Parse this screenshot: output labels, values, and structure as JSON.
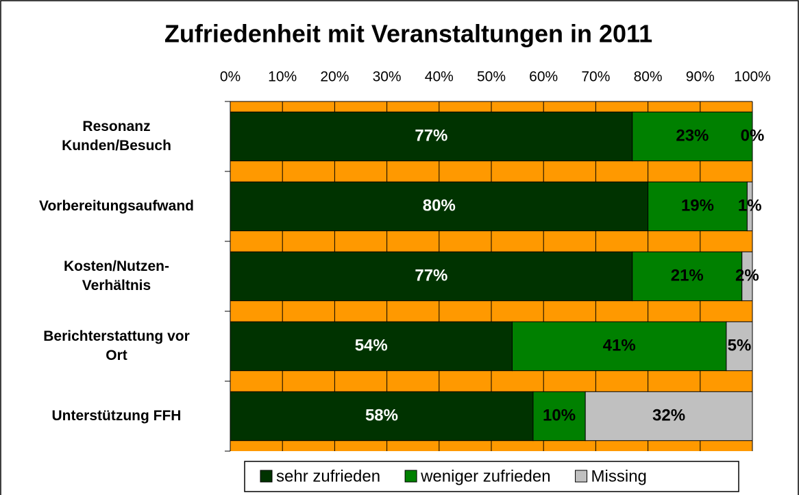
{
  "chart_data": {
    "type": "stacked_bar_horizontal",
    "title": "Zufriedenheit mit Veranstaltungen in 2011",
    "categories": [
      [
        "Resonanz",
        "Kunden/Besuch"
      ],
      [
        "Vorbereitungsaufwand"
      ],
      [
        "Kosten/Nutzen-",
        "Verhältnis"
      ],
      [
        "Berichterstattung vor",
        "Ort"
      ],
      [
        "Unterstützung FFH"
      ]
    ],
    "series": [
      {
        "name": "sehr zufrieden",
        "color": "#003300",
        "label_color": "#ffffff",
        "values": [
          77,
          80,
          77,
          54,
          58
        ],
        "value_labels": [
          "77%",
          "80%",
          "77%",
          "54%",
          "58%"
        ]
      },
      {
        "name": "weniger zufrieden",
        "color": "#008000",
        "label_color": "#000000",
        "values": [
          23,
          19,
          21,
          41,
          10
        ],
        "value_labels": [
          "23%",
          "19%",
          "21%",
          "41%",
          "10%"
        ]
      },
      {
        "name": "Missing",
        "color": "#c0c0c0",
        "label_color": "#000000",
        "values": [
          0,
          1,
          2,
          5,
          32
        ],
        "value_labels": [
          "0%",
          "1%",
          "2%",
          "5%",
          "32%"
        ]
      }
    ],
    "xlim": [
      0,
      100
    ],
    "xticks": [
      {
        "value": 0,
        "label": "0%"
      },
      {
        "value": 10,
        "label": "10%"
      },
      {
        "value": 20,
        "label": "20%"
      },
      {
        "value": 30,
        "label": "30%"
      },
      {
        "value": 40,
        "label": "40%"
      },
      {
        "value": 50,
        "label": "50%"
      },
      {
        "value": 60,
        "label": "60%"
      },
      {
        "value": 70,
        "label": "70%"
      },
      {
        "value": 80,
        "label": "80%"
      },
      {
        "value": 90,
        "label": "90%"
      },
      {
        "value": 100,
        "label": "100%"
      }
    ],
    "plot_background": "#ff9900",
    "grid": true,
    "legend": "bottom"
  }
}
